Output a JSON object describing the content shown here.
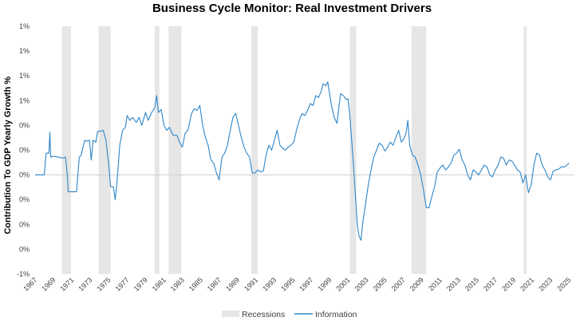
{
  "chart_data": {
    "type": "line",
    "title": "Business Cycle Monitor: Real Investment Drivers",
    "xlabel": "",
    "ylabel": "Contribution To GDP Yearly Growth %",
    "xlim": [
      1967,
      2025.6
    ],
    "ylim": [
      -1.0,
      1.5
    ],
    "ytick_values": [
      -1.0,
      -0.75,
      -0.5,
      -0.25,
      0.0,
      0.25,
      0.5,
      0.75,
      1.0,
      1.25,
      1.5
    ],
    "ytick_labels": [
      "-1%",
      "0%",
      "0%",
      "0%",
      "0%",
      "0%",
      "0%",
      "1%",
      "1%",
      "1%",
      "1%"
    ],
    "xtick_labels": [
      "1967",
      "1969",
      "1971",
      "1973",
      "1975",
      "1977",
      "1979",
      "1981",
      "1983",
      "1985",
      "1987",
      "1989",
      "1991",
      "1993",
      "1995",
      "1997",
      "1999",
      "2001",
      "2003",
      "2005",
      "2007",
      "2009",
      "2011",
      "2013",
      "2015",
      "2017",
      "2019",
      "2021",
      "2023",
      "2025"
    ],
    "legend": [
      "Recessions",
      "Information"
    ],
    "recessions": [
      [
        1969.9,
        1970.9
      ],
      [
        1973.9,
        1975.2
      ],
      [
        1980.0,
        1980.5
      ],
      [
        1981.5,
        1982.9
      ],
      [
        1990.5,
        1991.2
      ],
      [
        2001.2,
        2001.9
      ],
      [
        2007.9,
        2009.5
      ],
      [
        2020.1,
        2020.4
      ]
    ],
    "series": [
      {
        "name": "Information",
        "color": "#2f86c8",
        "points": [
          [
            1967.0,
            0.0
          ],
          [
            1967.5,
            0.0
          ],
          [
            1968.0,
            0.0
          ],
          [
            1968.2,
            0.22
          ],
          [
            1968.5,
            0.22
          ],
          [
            1968.6,
            0.43
          ],
          [
            1968.7,
            0.18
          ],
          [
            1969.0,
            0.19
          ],
          [
            1969.5,
            0.18
          ],
          [
            1970.0,
            0.17
          ],
          [
            1970.3,
            0.18
          ],
          [
            1970.5,
            0.0
          ],
          [
            1970.6,
            -0.17
          ],
          [
            1971.0,
            -0.17
          ],
          [
            1971.5,
            -0.17
          ],
          [
            1971.8,
            0.18
          ],
          [
            1972.0,
            0.2
          ],
          [
            1972.2,
            0.28
          ],
          [
            1972.4,
            0.35
          ],
          [
            1972.6,
            0.34
          ],
          [
            1972.9,
            0.35
          ],
          [
            1973.1,
            0.15
          ],
          [
            1973.3,
            0.35
          ],
          [
            1973.6,
            0.33
          ],
          [
            1973.8,
            0.44
          ],
          [
            1974.0,
            0.44
          ],
          [
            1974.4,
            0.45
          ],
          [
            1974.7,
            0.35
          ],
          [
            1975.0,
            0.1
          ],
          [
            1975.2,
            -0.12
          ],
          [
            1975.5,
            -0.12
          ],
          [
            1975.7,
            -0.25
          ],
          [
            1975.9,
            -0.07
          ],
          [
            1976.2,
            0.3
          ],
          [
            1976.5,
            0.45
          ],
          [
            1976.8,
            0.48
          ],
          [
            1977.0,
            0.6
          ],
          [
            1977.3,
            0.55
          ],
          [
            1977.6,
            0.58
          ],
          [
            1978.0,
            0.53
          ],
          [
            1978.3,
            0.58
          ],
          [
            1978.6,
            0.5
          ],
          [
            1979.0,
            0.63
          ],
          [
            1979.3,
            0.55
          ],
          [
            1979.6,
            0.62
          ],
          [
            1980.0,
            0.68
          ],
          [
            1980.2,
            0.8
          ],
          [
            1980.4,
            0.63
          ],
          [
            1980.7,
            0.66
          ],
          [
            1981.0,
            0.5
          ],
          [
            1981.3,
            0.45
          ],
          [
            1981.6,
            0.48
          ],
          [
            1982.0,
            0.4
          ],
          [
            1982.4,
            0.4
          ],
          [
            1982.7,
            0.33
          ],
          [
            1983.0,
            0.28
          ],
          [
            1983.3,
            0.42
          ],
          [
            1983.6,
            0.45
          ],
          [
            1984.0,
            0.62
          ],
          [
            1984.3,
            0.67
          ],
          [
            1984.6,
            0.65
          ],
          [
            1984.9,
            0.7
          ],
          [
            1985.2,
            0.5
          ],
          [
            1985.5,
            0.38
          ],
          [
            1985.8,
            0.3
          ],
          [
            1986.1,
            0.15
          ],
          [
            1986.4,
            0.12
          ],
          [
            1986.7,
            0.02
          ],
          [
            1987.0,
            -0.05
          ],
          [
            1987.3,
            0.18
          ],
          [
            1987.6,
            0.22
          ],
          [
            1987.9,
            0.3
          ],
          [
            1988.2,
            0.45
          ],
          [
            1988.5,
            0.58
          ],
          [
            1988.8,
            0.62
          ],
          [
            1989.1,
            0.5
          ],
          [
            1989.4,
            0.38
          ],
          [
            1989.7,
            0.28
          ],
          [
            1990.0,
            0.22
          ],
          [
            1990.3,
            0.18
          ],
          [
            1990.6,
            0.02
          ],
          [
            1990.9,
            0.02
          ],
          [
            1991.2,
            0.05
          ],
          [
            1991.5,
            0.03
          ],
          [
            1991.8,
            0.04
          ],
          [
            1992.1,
            0.2
          ],
          [
            1992.4,
            0.3
          ],
          [
            1992.7,
            0.25
          ],
          [
            1993.0,
            0.35
          ],
          [
            1993.3,
            0.45
          ],
          [
            1993.6,
            0.3
          ],
          [
            1993.9,
            0.27
          ],
          [
            1994.2,
            0.25
          ],
          [
            1994.5,
            0.28
          ],
          [
            1994.8,
            0.3
          ],
          [
            1995.1,
            0.33
          ],
          [
            1995.4,
            0.45
          ],
          [
            1995.7,
            0.55
          ],
          [
            1996.0,
            0.62
          ],
          [
            1996.3,
            0.6
          ],
          [
            1996.6,
            0.65
          ],
          [
            1996.9,
            0.72
          ],
          [
            1997.2,
            0.7
          ],
          [
            1997.5,
            0.8
          ],
          [
            1997.8,
            0.78
          ],
          [
            1998.1,
            0.85
          ],
          [
            1998.3,
            0.92
          ],
          [
            1998.6,
            0.9
          ],
          [
            1998.8,
            0.94
          ],
          [
            1999.0,
            0.82
          ],
          [
            1999.2,
            0.7
          ],
          [
            1999.5,
            0.58
          ],
          [
            1999.8,
            0.52
          ],
          [
            2000.0,
            0.68
          ],
          [
            2000.2,
            0.82
          ],
          [
            2000.5,
            0.8
          ],
          [
            2000.8,
            0.76
          ],
          [
            2001.0,
            0.77
          ],
          [
            2001.2,
            0.6
          ],
          [
            2001.4,
            0.35
          ],
          [
            2001.6,
            0.1
          ],
          [
            2001.8,
            -0.2
          ],
          [
            2002.0,
            -0.5
          ],
          [
            2002.2,
            -0.62
          ],
          [
            2002.4,
            -0.66
          ],
          [
            2002.6,
            -0.48
          ],
          [
            2002.9,
            -0.3
          ],
          [
            2003.2,
            -0.1
          ],
          [
            2003.5,
            0.05
          ],
          [
            2003.8,
            0.18
          ],
          [
            2004.1,
            0.25
          ],
          [
            2004.4,
            0.32
          ],
          [
            2004.7,
            0.3
          ],
          [
            2005.0,
            0.24
          ],
          [
            2005.3,
            0.28
          ],
          [
            2005.6,
            0.33
          ],
          [
            2005.9,
            0.3
          ],
          [
            2006.2,
            0.38
          ],
          [
            2006.5,
            0.45
          ],
          [
            2006.8,
            0.33
          ],
          [
            2007.1,
            0.37
          ],
          [
            2007.3,
            0.42
          ],
          [
            2007.5,
            0.55
          ],
          [
            2007.7,
            0.3
          ],
          [
            2008.0,
            0.2
          ],
          [
            2008.3,
            0.18
          ],
          [
            2008.6,
            0.1
          ],
          [
            2008.9,
            0.0
          ],
          [
            2009.2,
            -0.15
          ],
          [
            2009.5,
            -0.33
          ],
          [
            2009.8,
            -0.33
          ],
          [
            2010.1,
            -0.22
          ],
          [
            2010.4,
            -0.12
          ],
          [
            2010.7,
            0.03
          ],
          [
            2011.0,
            0.07
          ],
          [
            2011.3,
            0.1
          ],
          [
            2011.6,
            0.05
          ],
          [
            2011.9,
            0.08
          ],
          [
            2012.2,
            0.12
          ],
          [
            2012.5,
            0.2
          ],
          [
            2012.8,
            0.22
          ],
          [
            2013.1,
            0.26
          ],
          [
            2013.4,
            0.15
          ],
          [
            2013.7,
            0.1
          ],
          [
            2014.0,
            0.0
          ],
          [
            2014.3,
            -0.05
          ],
          [
            2014.6,
            0.05
          ],
          [
            2014.9,
            0.03
          ],
          [
            2015.2,
            0.0
          ],
          [
            2015.5,
            0.05
          ],
          [
            2015.8,
            0.1
          ],
          [
            2016.1,
            0.08
          ],
          [
            2016.4,
            0.0
          ],
          [
            2016.7,
            -0.02
          ],
          [
            2017.0,
            0.05
          ],
          [
            2017.3,
            0.1
          ],
          [
            2017.6,
            0.18
          ],
          [
            2017.9,
            0.17
          ],
          [
            2018.2,
            0.1
          ],
          [
            2018.5,
            0.15
          ],
          [
            2018.8,
            0.14
          ],
          [
            2019.1,
            0.1
          ],
          [
            2019.4,
            0.05
          ],
          [
            2019.7,
            0.03
          ],
          [
            2020.0,
            -0.08
          ],
          [
            2020.3,
            0.0
          ],
          [
            2020.6,
            -0.18
          ],
          [
            2020.9,
            -0.1
          ],
          [
            2021.2,
            0.1
          ],
          [
            2021.5,
            0.22
          ],
          [
            2021.8,
            0.2
          ],
          [
            2022.1,
            0.1
          ],
          [
            2022.4,
            0.05
          ],
          [
            2022.7,
            -0.02
          ],
          [
            2023.0,
            -0.05
          ],
          [
            2023.3,
            0.04
          ],
          [
            2023.6,
            0.05
          ],
          [
            2023.9,
            0.06
          ],
          [
            2024.2,
            0.08
          ],
          [
            2024.5,
            0.08
          ],
          [
            2024.8,
            0.1
          ],
          [
            2025.0,
            0.12
          ]
        ]
      }
    ]
  }
}
